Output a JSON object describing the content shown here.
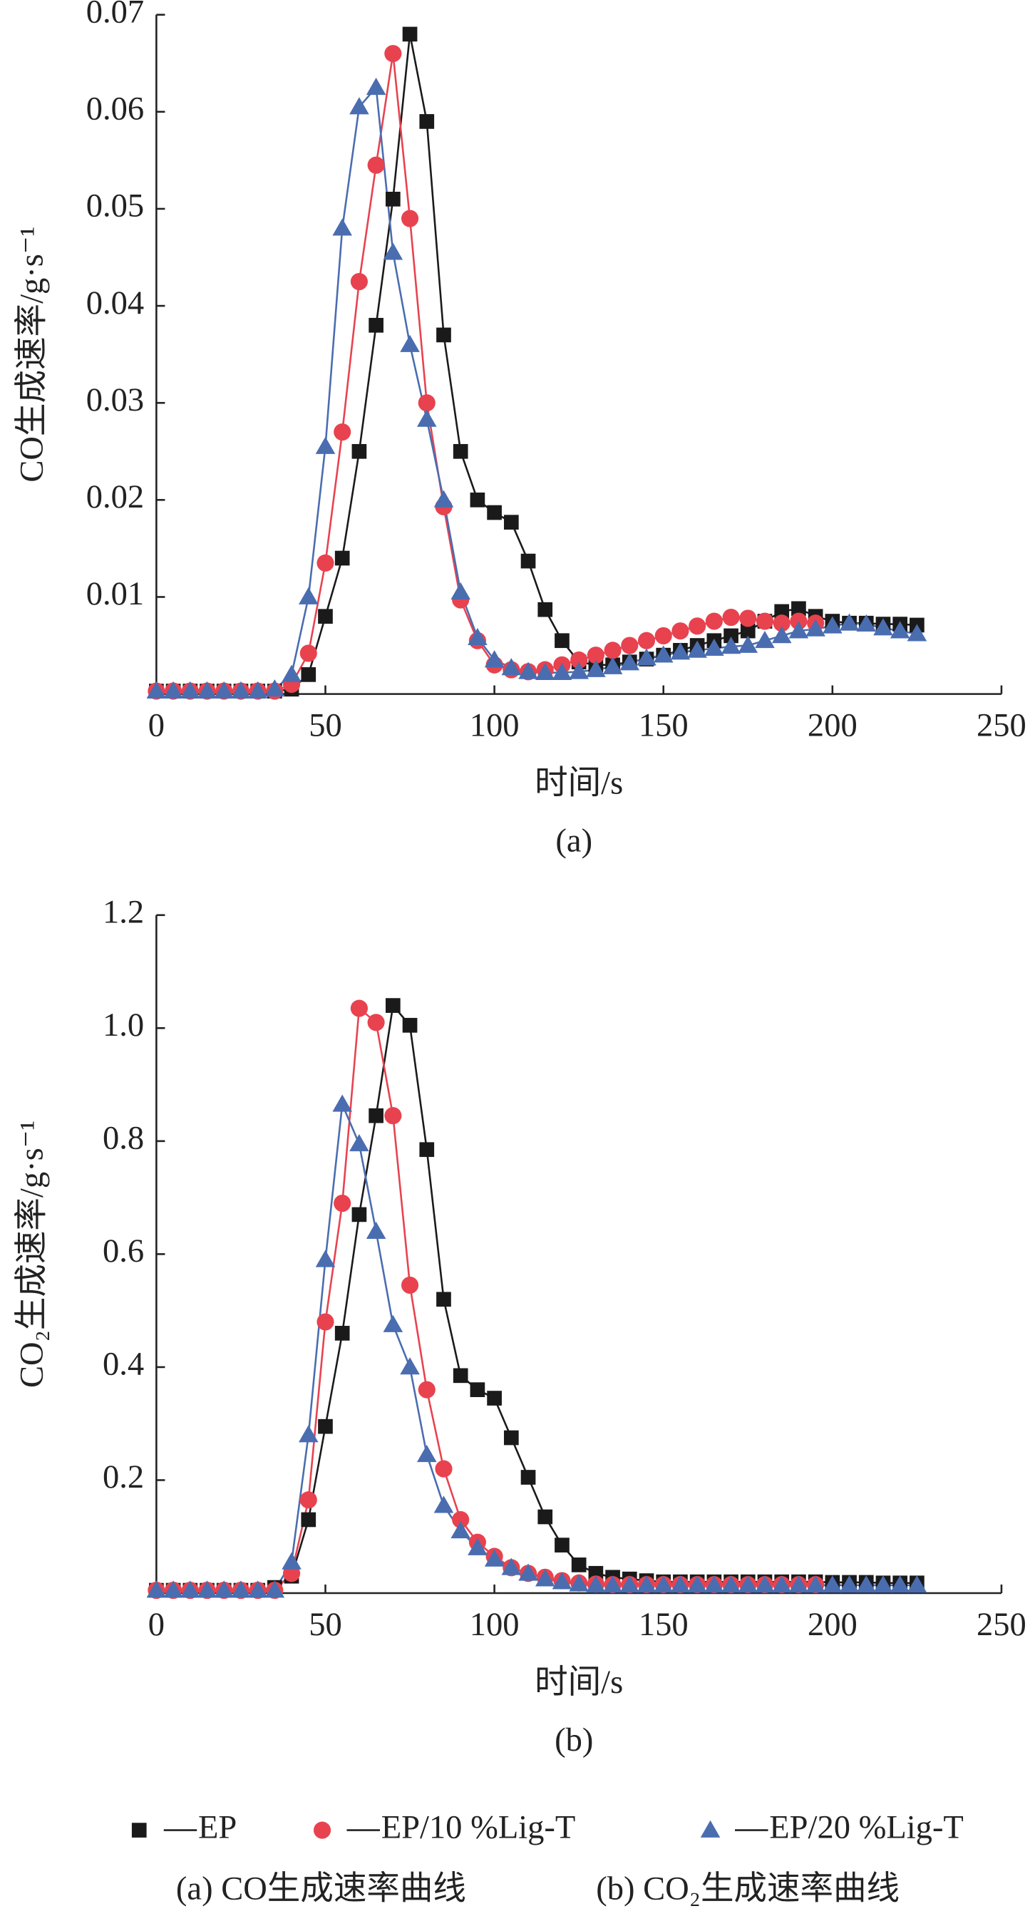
{
  "chart_data": [
    {
      "type": "line",
      "label": "(a)",
      "xlabel": "时间/s",
      "ylabel": "CO生成速率/g·s⁻¹",
      "xlim": [
        0,
        250
      ],
      "xticks": [
        0,
        50,
        100,
        150,
        200,
        250
      ],
      "ylim": [
        0,
        0.07
      ],
      "yticks": [
        0.01,
        0.02,
        0.03,
        0.04,
        0.05,
        0.06,
        0.07
      ],
      "x": [
        0,
        5,
        10,
        15,
        20,
        25,
        30,
        35,
        40,
        45,
        50,
        55,
        60,
        65,
        70,
        75,
        80,
        85,
        90,
        95,
        100,
        105,
        110,
        115,
        120,
        125,
        130,
        135,
        140,
        145,
        150,
        155,
        160,
        165,
        170,
        175,
        180,
        185,
        190,
        195,
        200,
        205,
        210,
        215,
        220,
        225
      ],
      "series": [
        {
          "name": "EP",
          "color": "#1a1a1a",
          "marker": "square",
          "values": [
            0.0003,
            0.0003,
            0.0003,
            0.0003,
            0.0003,
            0.0003,
            0.0003,
            0.0003,
            0.0005,
            0.002,
            0.008,
            0.014,
            0.025,
            0.038,
            0.051,
            0.068,
            0.059,
            0.037,
            0.025,
            0.02,
            0.0187,
            0.0177,
            0.0137,
            0.0087,
            0.0055,
            0.0033,
            0.003,
            0.003,
            0.0033,
            0.0036,
            0.004,
            0.0045,
            0.005,
            0.0055,
            0.006,
            0.0065,
            0.0075,
            0.0085,
            0.0088,
            0.008,
            0.0075,
            0.0073,
            0.0073,
            0.0072,
            0.0072,
            0.0071
          ]
        },
        {
          "name": "EP/10 %Lig-T",
          "color": "#e8424f",
          "marker": "circle",
          "values": [
            0.0003,
            0.0003,
            0.0003,
            0.0003,
            0.0003,
            0.0003,
            0.0003,
            0.0003,
            0.001,
            0.0042,
            0.0135,
            0.027,
            0.0425,
            0.0545,
            0.066,
            0.049,
            0.03,
            0.0193,
            0.0097,
            0.0055,
            0.003,
            0.0025,
            0.0023,
            0.0025,
            0.003,
            0.0035,
            0.004,
            0.0045,
            0.005,
            0.0055,
            0.006,
            0.0065,
            0.007,
            0.0075,
            0.0079,
            0.0078,
            0.0075,
            0.0073,
            0.0075,
            0.0073,
            null,
            null,
            null,
            null,
            null,
            null
          ]
        },
        {
          "name": "EP/20 %Lig-T",
          "color": "#4a6db0",
          "marker": "triangle",
          "values": [
            0.0003,
            0.0003,
            0.0003,
            0.0003,
            0.0003,
            0.0003,
            0.0003,
            0.0005,
            0.002,
            0.01,
            0.0255,
            0.048,
            0.0605,
            0.0625,
            0.0455,
            0.036,
            0.0283,
            0.02,
            0.0105,
            0.0058,
            0.0035,
            0.0027,
            0.0023,
            0.0022,
            0.0022,
            0.0023,
            0.0025,
            0.0028,
            0.0032,
            0.0037,
            0.004,
            0.0043,
            0.0045,
            0.0047,
            0.0049,
            0.005,
            0.0055,
            0.006,
            0.0065,
            0.0067,
            0.007,
            0.0073,
            0.0072,
            0.0068,
            0.0065,
            0.0062
          ]
        }
      ]
    },
    {
      "type": "line",
      "label": "(b)",
      "xlabel": "时间/s",
      "ylabel": "CO₂生成速率/g·s⁻¹",
      "xlim": [
        0,
        250
      ],
      "xticks": [
        0,
        50,
        100,
        150,
        200,
        250
      ],
      "ylim": [
        0,
        1.2
      ],
      "yticks": [
        0.2,
        0.4,
        0.6,
        0.8,
        {
          "value": 1.0,
          "label": "1.0"
        },
        1.2
      ],
      "x": [
        0,
        5,
        10,
        15,
        20,
        25,
        30,
        35,
        40,
        45,
        50,
        55,
        60,
        65,
        70,
        75,
        80,
        85,
        90,
        95,
        100,
        105,
        110,
        115,
        120,
        125,
        130,
        135,
        140,
        145,
        150,
        155,
        160,
        165,
        170,
        175,
        180,
        185,
        190,
        195,
        200,
        205,
        210,
        215,
        220,
        225
      ],
      "series": [
        {
          "name": "EP",
          "color": "#1a1a1a",
          "marker": "square",
          "values": [
            0.005,
            0.005,
            0.005,
            0.005,
            0.005,
            0.005,
            0.005,
            0.01,
            0.03,
            0.13,
            0.295,
            0.46,
            0.67,
            0.845,
            1.04,
            1.005,
            0.785,
            0.52,
            0.385,
            0.36,
            0.345,
            0.275,
            0.205,
            0.135,
            0.085,
            0.05,
            0.035,
            0.028,
            0.025,
            0.022,
            0.02,
            0.02,
            0.02,
            0.02,
            0.02,
            0.02,
            0.02,
            0.02,
            0.02,
            0.02,
            0.019,
            0.019,
            0.019,
            0.018,
            0.018,
            0.018
          ]
        },
        {
          "name": "EP/10 %Lig-T",
          "color": "#e8424f",
          "marker": "circle",
          "values": [
            0.005,
            0.005,
            0.005,
            0.005,
            0.005,
            0.005,
            0.005,
            0.005,
            0.035,
            0.165,
            0.48,
            0.69,
            1.035,
            1.01,
            0.845,
            0.545,
            0.36,
            0.22,
            0.13,
            0.09,
            0.065,
            0.045,
            0.035,
            0.028,
            0.022,
            0.018,
            0.016,
            0.015,
            0.015,
            0.015,
            0.015,
            0.015,
            0.015,
            0.015,
            0.015,
            0.015,
            0.015,
            0.015,
            0.015,
            0.015,
            null,
            null,
            null,
            null,
            null,
            null
          ]
        },
        {
          "name": "EP/20 %Lig-T",
          "color": "#4a6db0",
          "marker": "triangle",
          "values": [
            0.005,
            0.005,
            0.005,
            0.005,
            0.005,
            0.005,
            0.005,
            0.005,
            0.055,
            0.28,
            0.59,
            0.865,
            0.795,
            0.64,
            0.475,
            0.4,
            0.245,
            0.155,
            0.11,
            0.08,
            0.06,
            0.045,
            0.035,
            0.025,
            0.02,
            0.016,
            0.014,
            0.014,
            0.014,
            0.014,
            0.014,
            0.014,
            0.014,
            0.014,
            0.014,
            0.014,
            0.014,
            0.014,
            0.014,
            0.014,
            0.014,
            0.014,
            0.014,
            0.014,
            0.014,
            0.014
          ]
        }
      ]
    }
  ],
  "caption": [
    "(a) CO生成速率曲线",
    "(b) CO₂生成速率曲线"
  ]
}
